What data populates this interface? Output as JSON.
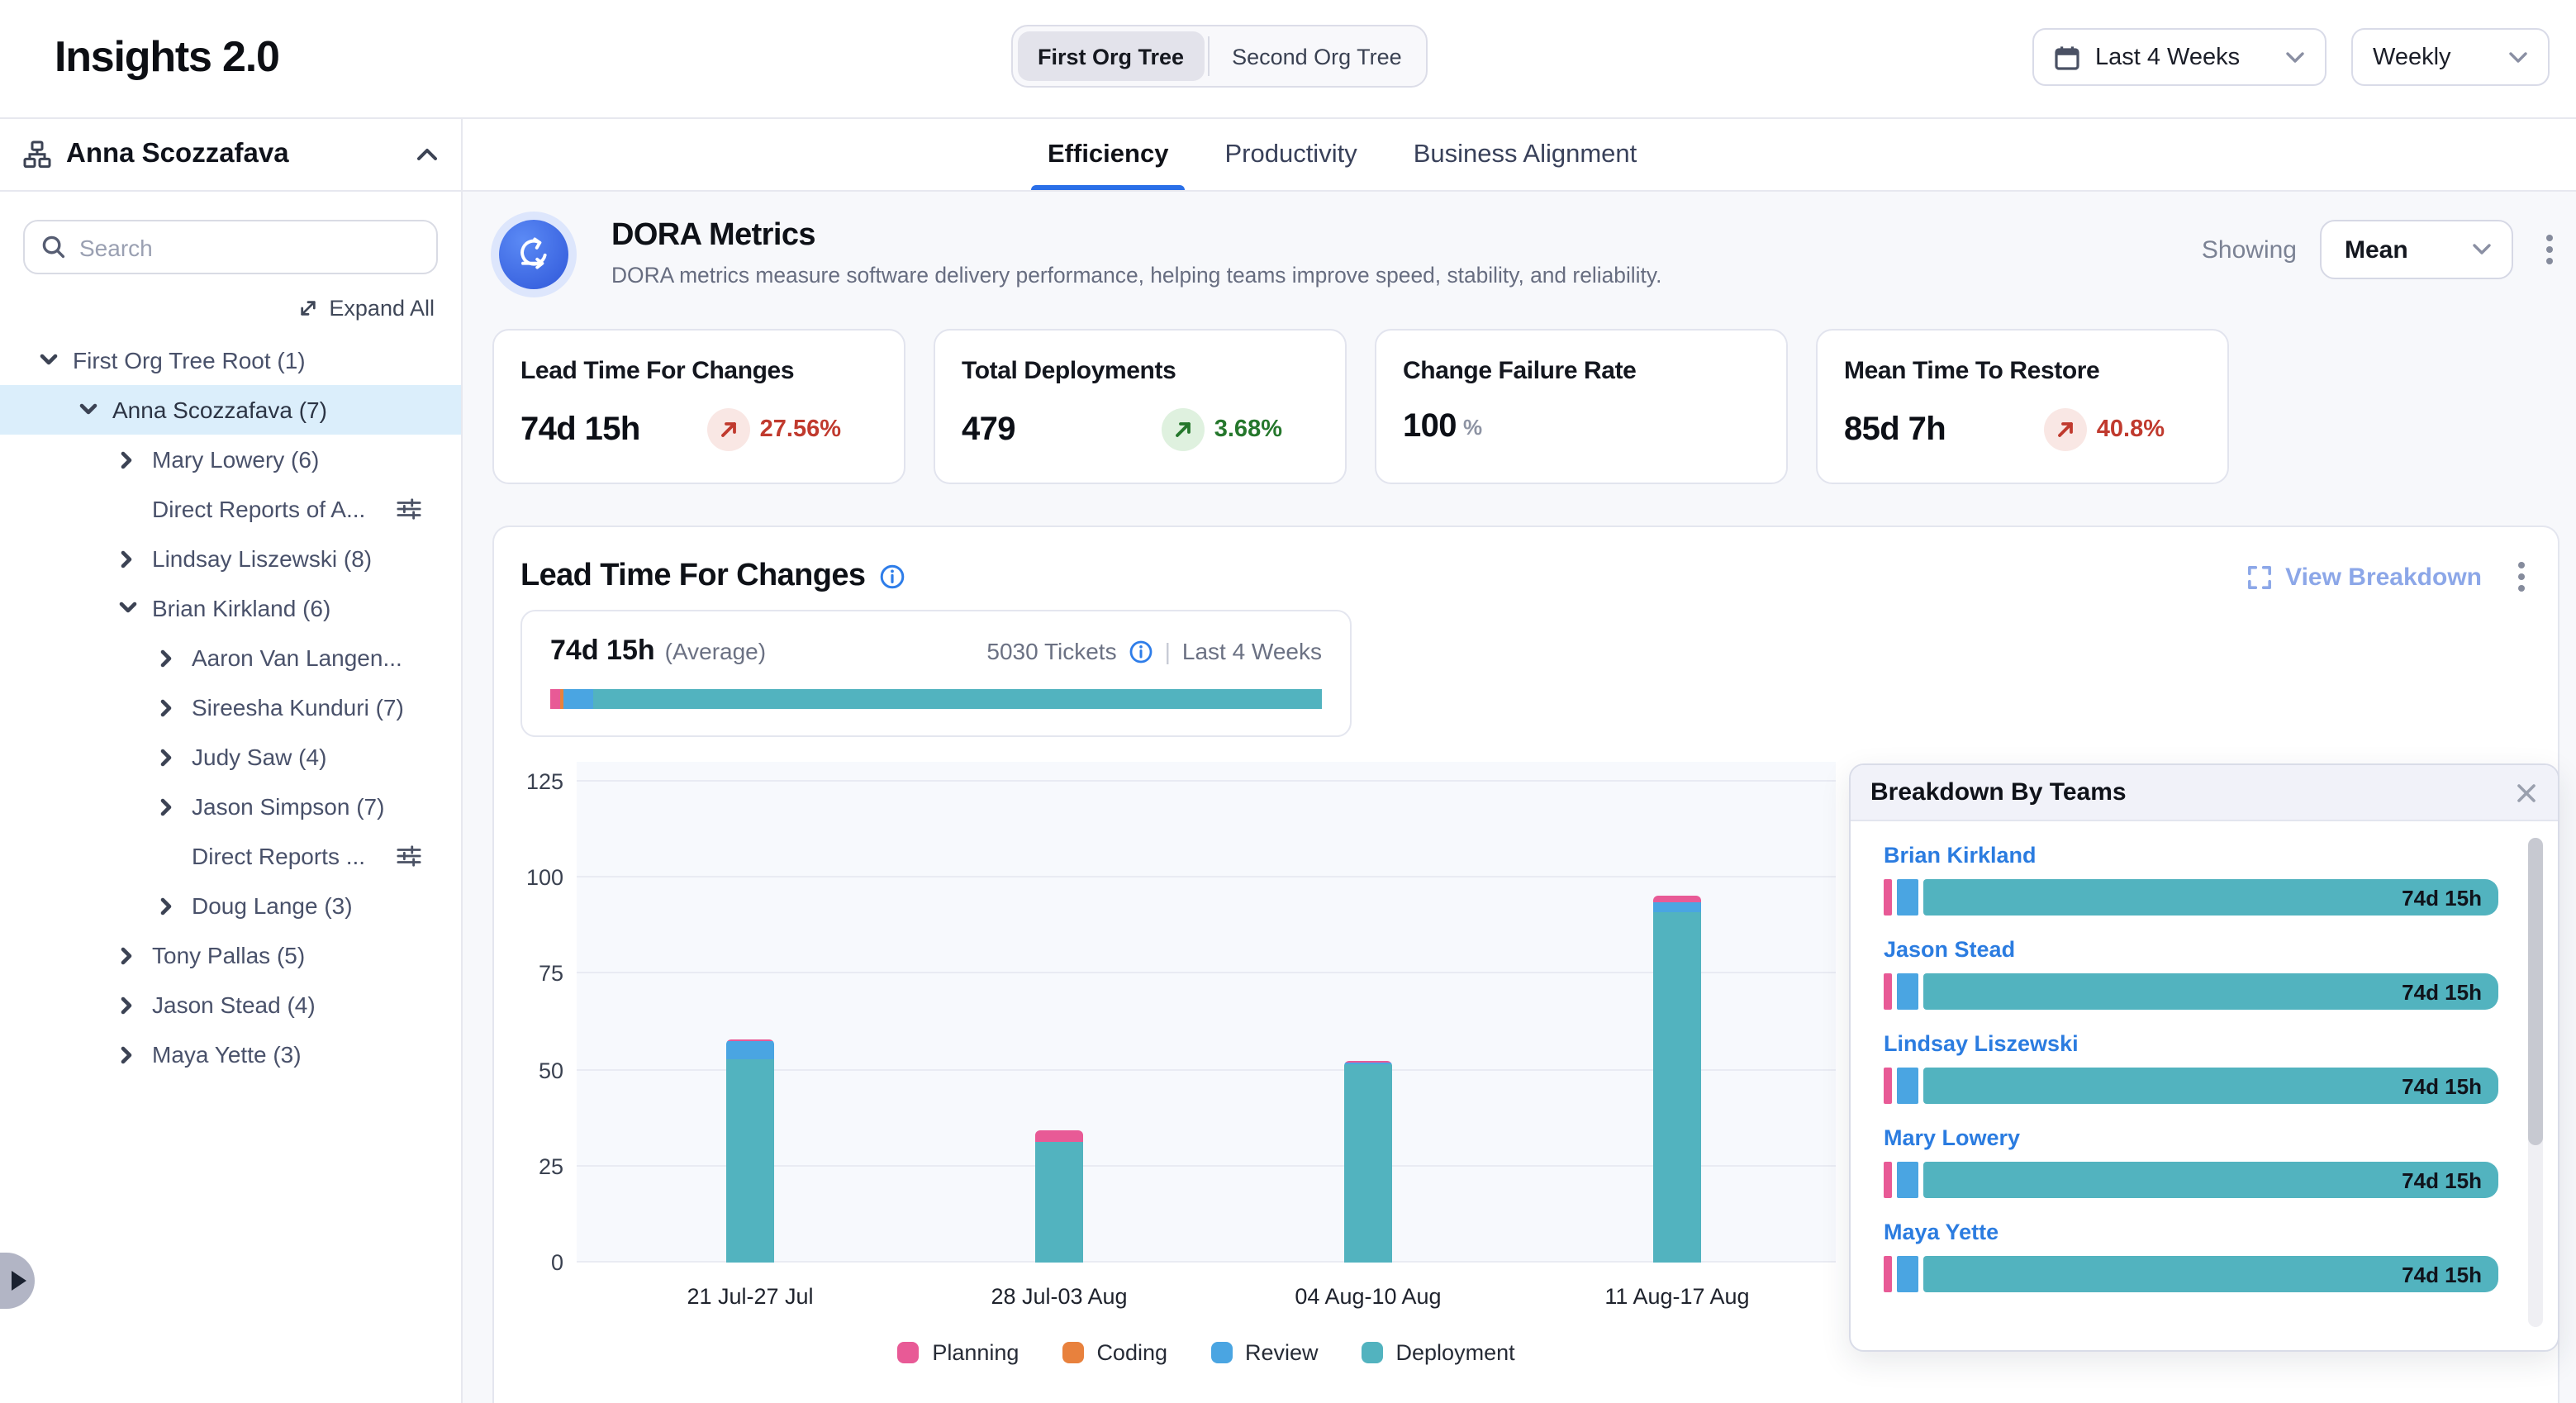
{
  "header": {
    "title": "Insights 2.0",
    "org_toggle": [
      "First Org Tree",
      "Second Org Tree"
    ],
    "active_toggle": 0,
    "date_range": "Last 4 Weeks",
    "granularity": "Weekly"
  },
  "sidebar": {
    "user": "Anna Scozzafava",
    "search_placeholder": "Search",
    "expand_all": "Expand All",
    "tree": [
      {
        "label": "First Org Tree Root (1)",
        "level": 0,
        "chevron": "down"
      },
      {
        "label": "Anna Scozzafava (7)",
        "level": 1,
        "chevron": "down",
        "selected": true
      },
      {
        "label": "Mary Lowery (6)",
        "level": 2,
        "chevron": "right"
      },
      {
        "label": "Direct Reports of A...",
        "level": 2,
        "chevron": null,
        "filter": true
      },
      {
        "label": "Lindsay Liszewski (8)",
        "level": 2,
        "chevron": "right"
      },
      {
        "label": "Brian Kirkland (6)",
        "level": 2,
        "chevron": "down"
      },
      {
        "label": "Aaron Van Langen...",
        "level": 3,
        "chevron": "right"
      },
      {
        "label": "Sireesha Kunduri (7)",
        "level": 3,
        "chevron": "right"
      },
      {
        "label": "Judy Saw (4)",
        "level": 3,
        "chevron": "right"
      },
      {
        "label": "Jason Simpson (7)",
        "level": 3,
        "chevron": "right"
      },
      {
        "label": "Direct Reports ...",
        "level": 3,
        "chevron": null,
        "filter": true
      },
      {
        "label": "Doug Lange (3)",
        "level": 3,
        "chevron": "right"
      },
      {
        "label": "Tony Pallas (5)",
        "level": 2,
        "chevron": "right"
      },
      {
        "label": "Jason Stead (4)",
        "level": 2,
        "chevron": "right"
      },
      {
        "label": "Maya Yette (3)",
        "level": 2,
        "chevron": "right"
      }
    ]
  },
  "tabs": [
    {
      "label": "Efficiency",
      "active": true
    },
    {
      "label": "Productivity",
      "active": false
    },
    {
      "label": "Business Alignment",
      "active": false
    }
  ],
  "dora": {
    "title": "DORA Metrics",
    "subtitle": "DORA metrics measure software delivery performance, helping teams improve speed, stability, and reliability.",
    "showing_label": "Showing",
    "showing_value": "Mean"
  },
  "metric_cards": [
    {
      "title": "Lead Time For Changes",
      "value": "74d 15h",
      "delta": "27.56%",
      "trend": "up",
      "tone": "negative"
    },
    {
      "title": "Total Deployments",
      "value": "479",
      "delta": "3.68%",
      "trend": "up",
      "tone": "positive"
    },
    {
      "title": "Change Failure Rate",
      "value": "100",
      "unit": "%"
    },
    {
      "title": "Mean Time To Restore",
      "value": "85d 7h",
      "delta": "40.8%",
      "trend": "up",
      "tone": "negative"
    }
  ],
  "lead_section": {
    "title": "Lead Time For Changes",
    "view_breakdown": "View Breakdown",
    "average_value": "74d 15h",
    "average_label": "(Average)",
    "tickets": "5030 Tickets",
    "period": "Last 4 Weeks",
    "average_bar": [
      {
        "key": "planning",
        "pct": 1.3
      },
      {
        "key": "coding",
        "pct": 0.4
      },
      {
        "key": "review",
        "pct": 3.9
      },
      {
        "key": "deployment",
        "pct": 94.4
      }
    ]
  },
  "chart_data": {
    "type": "bar",
    "stacked": true,
    "title": "Lead Time For Changes",
    "categories": [
      "21 Jul-27 Jul",
      "28 Jul-03 Aug",
      "04 Aug-10 Aug",
      "11 Aug-17 Aug"
    ],
    "series": [
      {
        "name": "Planning",
        "key": "planning",
        "values": [
          0.7,
          2.7,
          0.5,
          2.0
        ]
      },
      {
        "name": "Coding",
        "key": "coding",
        "values": [
          0,
          0,
          0,
          0
        ]
      },
      {
        "name": "Review",
        "key": "review",
        "values": [
          4.5,
          0,
          0.3,
          2.5
        ]
      },
      {
        "name": "Deployment",
        "key": "deployment",
        "values": [
          53,
          31.5,
          51.5,
          91
        ]
      }
    ],
    "totals": [
      58.2,
      34.2,
      52.3,
      95.5
    ],
    "xlabel": "",
    "ylabel": "",
    "ylim": [
      0,
      125
    ],
    "yticks": [
      0,
      25,
      50,
      75,
      100,
      125
    ],
    "grid": true,
    "legend_position": "bottom"
  },
  "breakdown": {
    "title": "Breakdown By Teams",
    "teams": [
      {
        "name": "Brian Kirkland",
        "value": "74d 15h"
      },
      {
        "name": "Jason Stead",
        "value": "74d 15h"
      },
      {
        "name": "Lindsay Liszewski",
        "value": "74d 15h"
      },
      {
        "name": "Mary Lowery",
        "value": "74d 15h"
      },
      {
        "name": "Maya Yette",
        "value": "74d 15h"
      }
    ]
  },
  "colors": {
    "planning": "#e85a96",
    "coding": "#e8813d",
    "review": "#4aa5e2",
    "deployment": "#52b3bf",
    "accent_blue": "#2e7de9",
    "negative": "#c03a2e",
    "positive": "#25772c"
  }
}
